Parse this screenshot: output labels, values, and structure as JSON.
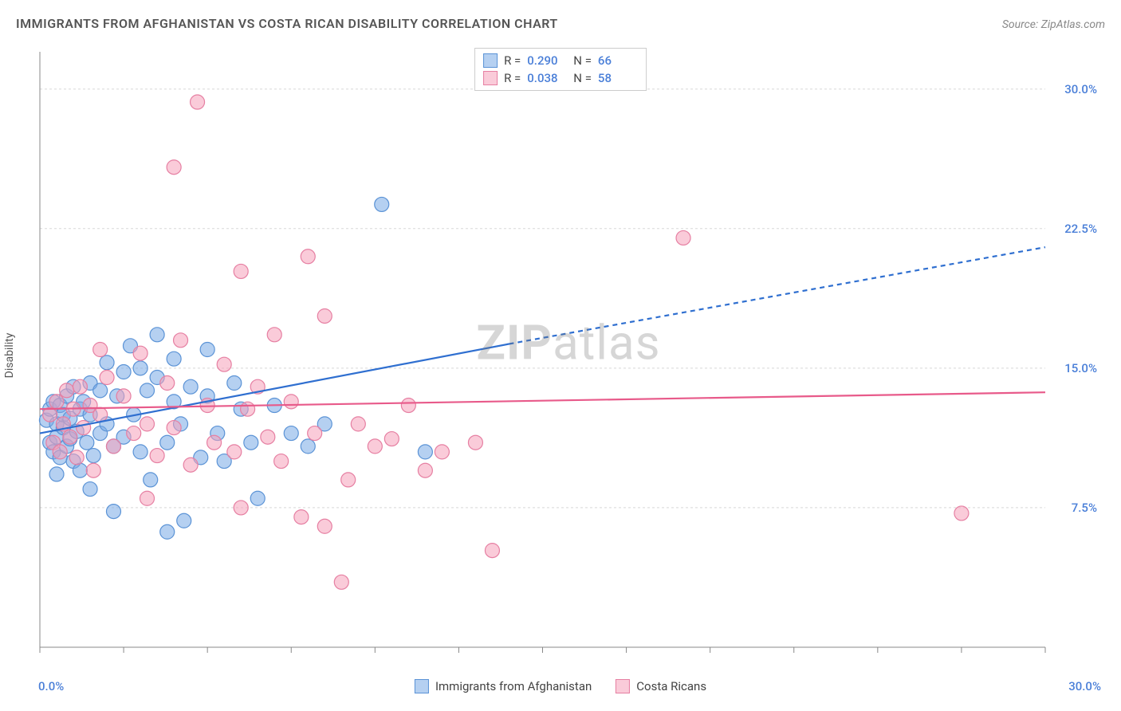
{
  "header": {
    "title": "IMMIGRANTS FROM AFGHANISTAN VS COSTA RICAN DISABILITY CORRELATION CHART",
    "source": "Source: ZipAtlas.com"
  },
  "chart": {
    "type": "scatter",
    "watermark": "ZIPatlas",
    "ylabel": "Disability",
    "background_color": "#ffffff",
    "grid_color": "#d8d8d8",
    "axis_color": "#888888",
    "xlim": [
      0,
      30
    ],
    "ylim": [
      0,
      32
    ],
    "xtick_minor_step": 2.5,
    "ytick_positions": [
      7.5,
      15.0,
      22.5,
      30.0
    ],
    "ytick_labels": [
      "7.5%",
      "15.0%",
      "22.5%",
      "30.0%"
    ],
    "x_start_label": "0.0%",
    "x_end_label": "30.0%",
    "tick_label_color": "#4a7fd8",
    "tick_label_fontsize": 15,
    "ylabel_fontsize": 14,
    "marker_radius": 9,
    "marker_stroke_width": 1.2,
    "trend_line_width": 2.2,
    "series": [
      {
        "name": "Immigrants from Afghanistan",
        "fill": "rgba(120,170,230,0.55)",
        "stroke": "#5b93d6",
        "trend_color": "#2f6fd0",
        "r_value": "0.290",
        "n_value": "66",
        "trend": {
          "x1": 0,
          "y1": 11.5,
          "x2": 14,
          "y2": 16.3,
          "dash_from_x": 14,
          "x3": 30,
          "y3": 21.5
        },
        "points": [
          [
            0.2,
            12.2
          ],
          [
            0.3,
            11.0
          ],
          [
            0.3,
            12.8
          ],
          [
            0.4,
            10.5
          ],
          [
            0.4,
            13.2
          ],
          [
            0.5,
            11.3
          ],
          [
            0.5,
            12.0
          ],
          [
            0.6,
            10.2
          ],
          [
            0.6,
            13.0
          ],
          [
            0.7,
            11.8
          ],
          [
            0.7,
            12.5
          ],
          [
            0.8,
            10.8
          ],
          [
            0.8,
            13.5
          ],
          [
            0.9,
            11.2
          ],
          [
            0.9,
            12.3
          ],
          [
            1.0,
            10.0
          ],
          [
            1.0,
            14.0
          ],
          [
            1.1,
            11.6
          ],
          [
            1.2,
            12.8
          ],
          [
            1.2,
            9.5
          ],
          [
            1.3,
            13.2
          ],
          [
            1.4,
            11.0
          ],
          [
            1.5,
            12.5
          ],
          [
            1.5,
            14.2
          ],
          [
            1.6,
            10.3
          ],
          [
            1.8,
            13.8
          ],
          [
            1.8,
            11.5
          ],
          [
            2.0,
            12.0
          ],
          [
            2.0,
            15.3
          ],
          [
            2.2,
            10.8
          ],
          [
            2.3,
            13.5
          ],
          [
            2.5,
            14.8
          ],
          [
            2.5,
            11.3
          ],
          [
            2.7,
            16.2
          ],
          [
            2.8,
            12.5
          ],
          [
            3.0,
            15.0
          ],
          [
            3.0,
            10.5
          ],
          [
            3.2,
            13.8
          ],
          [
            3.3,
            9.0
          ],
          [
            3.5,
            14.5
          ],
          [
            3.5,
            16.8
          ],
          [
            3.8,
            11.0
          ],
          [
            4.0,
            13.2
          ],
          [
            4.0,
            15.5
          ],
          [
            4.2,
            12.0
          ],
          [
            4.3,
            6.8
          ],
          [
            4.5,
            14.0
          ],
          [
            4.8,
            10.2
          ],
          [
            5.0,
            13.5
          ],
          [
            5.0,
            16.0
          ],
          [
            5.3,
            11.5
          ],
          [
            5.5,
            10.0
          ],
          [
            5.8,
            14.2
          ],
          [
            6.0,
            12.8
          ],
          [
            6.3,
            11.0
          ],
          [
            6.5,
            8.0
          ],
          [
            7.0,
            13.0
          ],
          [
            7.5,
            11.5
          ],
          [
            8.0,
            10.8
          ],
          [
            8.5,
            12.0
          ],
          [
            10.2,
            23.8
          ],
          [
            11.5,
            10.5
          ],
          [
            2.2,
            7.3
          ],
          [
            1.5,
            8.5
          ],
          [
            3.8,
            6.2
          ],
          [
            0.5,
            9.3
          ]
        ]
      },
      {
        "name": "Costa Ricans",
        "fill": "rgba(245,160,185,0.55)",
        "stroke": "#e67fa2",
        "trend_color": "#e85a8a",
        "r_value": "0.038",
        "n_value": "58",
        "trend": {
          "x1": 0,
          "y1": 12.8,
          "x2": 30,
          "y2": 13.7
        },
        "points": [
          [
            0.3,
            12.5
          ],
          [
            0.4,
            11.0
          ],
          [
            0.5,
            13.2
          ],
          [
            0.6,
            10.5
          ],
          [
            0.7,
            12.0
          ],
          [
            0.8,
            13.8
          ],
          [
            0.9,
            11.3
          ],
          [
            1.0,
            12.8
          ],
          [
            1.1,
            10.2
          ],
          [
            1.2,
            14.0
          ],
          [
            1.3,
            11.8
          ],
          [
            1.5,
            13.0
          ],
          [
            1.6,
            9.5
          ],
          [
            1.8,
            12.5
          ],
          [
            2.0,
            14.5
          ],
          [
            2.2,
            10.8
          ],
          [
            2.5,
            13.5
          ],
          [
            2.8,
            11.5
          ],
          [
            3.0,
            15.8
          ],
          [
            3.2,
            12.0
          ],
          [
            3.5,
            10.3
          ],
          [
            3.8,
            14.2
          ],
          [
            4.0,
            11.8
          ],
          [
            4.2,
            16.5
          ],
          [
            4.5,
            9.8
          ],
          [
            4.7,
            29.3
          ],
          [
            5.0,
            13.0
          ],
          [
            5.2,
            11.0
          ],
          [
            5.5,
            15.2
          ],
          [
            5.8,
            10.5
          ],
          [
            6.0,
            20.2
          ],
          [
            6.2,
            12.8
          ],
          [
            6.5,
            14.0
          ],
          [
            6.8,
            11.3
          ],
          [
            7.0,
            16.8
          ],
          [
            7.2,
            10.0
          ],
          [
            7.5,
            13.2
          ],
          [
            8.0,
            21.0
          ],
          [
            8.2,
            11.5
          ],
          [
            8.5,
            17.8
          ],
          [
            9.0,
            3.5
          ],
          [
            9.2,
            9.0
          ],
          [
            9.5,
            12.0
          ],
          [
            10.0,
            10.8
          ],
          [
            10.5,
            11.2
          ],
          [
            11.0,
            13.0
          ],
          [
            11.5,
            9.5
          ],
          [
            12.0,
            10.5
          ],
          [
            13.0,
            11.0
          ],
          [
            13.5,
            5.2
          ],
          [
            7.8,
            7.0
          ],
          [
            8.5,
            6.5
          ],
          [
            4.0,
            25.8
          ],
          [
            3.2,
            8.0
          ],
          [
            6.0,
            7.5
          ],
          [
            19.2,
            22.0
          ],
          [
            27.5,
            7.2
          ],
          [
            1.8,
            16.0
          ]
        ]
      }
    ],
    "legend": {
      "bottom_items": [
        "Immigrants from Afghanistan",
        "Costa Ricans"
      ],
      "r_prefix": "R =",
      "n_prefix": "N ="
    }
  }
}
